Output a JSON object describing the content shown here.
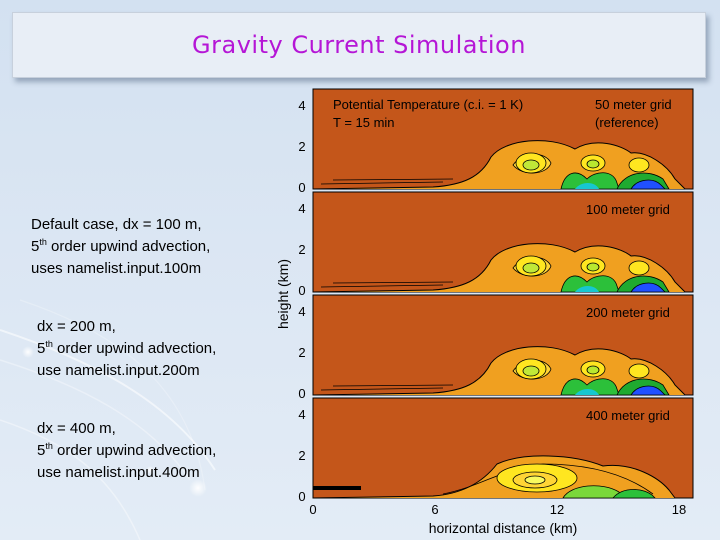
{
  "slide": {
    "title": "Gravity Current Simulation",
    "blocks": [
      {
        "line1": "Default case, dx = 100 m,",
        "ord": "5",
        "sup": "th",
        "line2": " order upwind advection,",
        "line3": "uses namelist.input.100m"
      },
      {
        "line1": "dx = 200 m,",
        "ord": "5",
        "sup": "th",
        "line2": " order upwind advection,",
        "line3": "use namelist.input.200m"
      },
      {
        "line1": "dx = 400 m,",
        "ord": "5",
        "sup": "th",
        "line2": " order upwind advection,",
        "line3": "use namelist.input.400m"
      }
    ]
  },
  "figure": {
    "ylabel": "height (km)",
    "xlabel": "horizontal distance (km)",
    "x_ticks": [
      "0",
      "6",
      "12",
      "18"
    ],
    "y_ticks": [
      "0",
      "2",
      "4"
    ],
    "panels": [
      {
        "title_line1": "Potential Temperature (c.i. = 1 K)",
        "title_line2": "T = 15 min",
        "grid_line1": "50 meter grid",
        "grid_line2": "(reference)"
      },
      {
        "grid_line1": "100 meter grid"
      },
      {
        "grid_line1": "200 meter grid"
      },
      {
        "grid_line1": "400 meter grid"
      }
    ],
    "colors": {
      "background": "#c4561a",
      "warm": "#f0a020",
      "yellow": "#ffe620",
      "green": "#20c030",
      "blue": "#2050ff"
    }
  }
}
